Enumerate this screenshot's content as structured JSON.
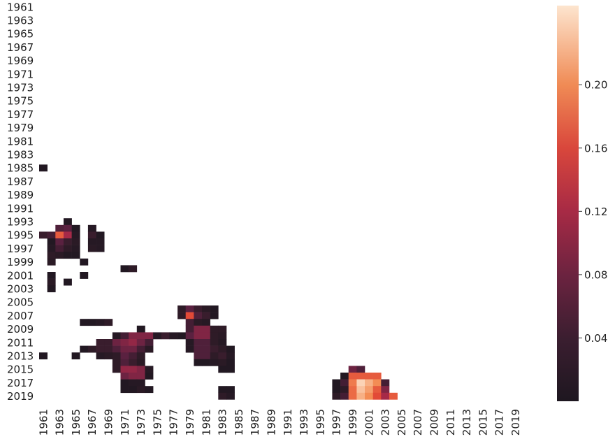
{
  "chart_data": {
    "type": "heatmap",
    "title": "",
    "xlabel": "",
    "ylabel": "",
    "x_tick_labels": [
      "1961",
      "1963",
      "1965",
      "1967",
      "1969",
      "1971",
      "1973",
      "1975",
      "1977",
      "1979",
      "1981",
      "1983",
      "1985",
      "1987",
      "1989",
      "1991",
      "1993",
      "1995",
      "1997",
      "1999",
      "2001",
      "2003",
      "2005",
      "2007",
      "2009",
      "2011",
      "2013",
      "2015",
      "2017",
      "2019"
    ],
    "y_tick_labels": [
      "1961",
      "1963",
      "1965",
      "1967",
      "1969",
      "1971",
      "1973",
      "1975",
      "1977",
      "1979",
      "1981",
      "1983",
      "1985",
      "1987",
      "1989",
      "1991",
      "1993",
      "1995",
      "1997",
      "1999",
      "2001",
      "2003",
      "2005",
      "2007",
      "2009",
      "2011",
      "2013",
      "2015",
      "2017",
      "2019"
    ],
    "x_range": [
      1961,
      2020
    ],
    "y_range": [
      1961,
      2020
    ],
    "colorbar": {
      "min": 0.0,
      "max": 0.25,
      "ticks": [
        0.04,
        0.08,
        0.12,
        0.16,
        0.2
      ],
      "tick_labels": [
        "0.04",
        "0.08",
        "0.12",
        "0.16",
        "0.20"
      ],
      "colormap": "rocket-like (black → purple → red → orange → cream)"
    },
    "cells": [
      {
        "x": 1961,
        "y": 1985,
        "v": 0.01
      },
      {
        "x": 1964,
        "y": 1993,
        "v": 0.01
      },
      {
        "x": 1963,
        "y": 1994,
        "v": 0.07
      },
      {
        "x": 1964,
        "y": 1994,
        "v": 0.08
      },
      {
        "x": 1965,
        "y": 1994,
        "v": 0.01
      },
      {
        "x": 1967,
        "y": 1994,
        "v": 0.02
      },
      {
        "x": 1961,
        "y": 1995,
        "v": 0.05
      },
      {
        "x": 1962,
        "y": 1995,
        "v": 0.06
      },
      {
        "x": 1963,
        "y": 1995,
        "v": 0.17
      },
      {
        "x": 1964,
        "y": 1995,
        "v": 0.12
      },
      {
        "x": 1965,
        "y": 1995,
        "v": 0.02
      },
      {
        "x": 1967,
        "y": 1995,
        "v": 0.05
      },
      {
        "x": 1968,
        "y": 1995,
        "v": 0.01
      },
      {
        "x": 1962,
        "y": 1996,
        "v": 0.01
      },
      {
        "x": 1963,
        "y": 1996,
        "v": 0.08
      },
      {
        "x": 1964,
        "y": 1996,
        "v": 0.05
      },
      {
        "x": 1965,
        "y": 1996,
        "v": 0.03
      },
      {
        "x": 1967,
        "y": 1996,
        "v": 0.02
      },
      {
        "x": 1968,
        "y": 1996,
        "v": 0.02
      },
      {
        "x": 1962,
        "y": 1997,
        "v": 0.02
      },
      {
        "x": 1963,
        "y": 1997,
        "v": 0.06
      },
      {
        "x": 1964,
        "y": 1997,
        "v": 0.04
      },
      {
        "x": 1965,
        "y": 1997,
        "v": 0.02
      },
      {
        "x": 1967,
        "y": 1997,
        "v": 0.03
      },
      {
        "x": 1968,
        "y": 1997,
        "v": 0.02
      },
      {
        "x": 1962,
        "y": 1998,
        "v": 0.04
      },
      {
        "x": 1963,
        "y": 1998,
        "v": 0.03
      },
      {
        "x": 1964,
        "y": 1998,
        "v": 0.01
      },
      {
        "x": 1965,
        "y": 1998,
        "v": 0.01
      },
      {
        "x": 1962,
        "y": 1999,
        "v": 0.03
      },
      {
        "x": 1966,
        "y": 1999,
        "v": 0.01
      },
      {
        "x": 1971,
        "y": 2000,
        "v": 0.01
      },
      {
        "x": 1972,
        "y": 2000,
        "v": 0.04
      },
      {
        "x": 1962,
        "y": 2001,
        "v": 0.01
      },
      {
        "x": 1966,
        "y": 2001,
        "v": 0.01
      },
      {
        "x": 1962,
        "y": 2002,
        "v": 0.03
      },
      {
        "x": 1964,
        "y": 2002,
        "v": 0.01
      },
      {
        "x": 1962,
        "y": 2003,
        "v": 0.01
      },
      {
        "x": 1978,
        "y": 2006,
        "v": 0.04
      },
      {
        "x": 1979,
        "y": 2006,
        "v": 0.08
      },
      {
        "x": 1980,
        "y": 2006,
        "v": 0.05
      },
      {
        "x": 1981,
        "y": 2006,
        "v": 0.03
      },
      {
        "x": 1982,
        "y": 2006,
        "v": 0.01
      },
      {
        "x": 1978,
        "y": 2007,
        "v": 0.04
      },
      {
        "x": 1979,
        "y": 2007,
        "v": 0.16
      },
      {
        "x": 1980,
        "y": 2007,
        "v": 0.07
      },
      {
        "x": 1981,
        "y": 2007,
        "v": 0.05
      },
      {
        "x": 1982,
        "y": 2007,
        "v": 0.01
      },
      {
        "x": 1966,
        "y": 2008,
        "v": 0.01
      },
      {
        "x": 1967,
        "y": 2008,
        "v": 0.01
      },
      {
        "x": 1968,
        "y": 2008,
        "v": 0.02
      },
      {
        "x": 1969,
        "y": 2008,
        "v": 0.04
      },
      {
        "x": 1979,
        "y": 2008,
        "v": 0.06
      },
      {
        "x": 1980,
        "y": 2008,
        "v": 0.03
      },
      {
        "x": 1981,
        "y": 2008,
        "v": 0.02
      },
      {
        "x": 1973,
        "y": 2009,
        "v": 0.01
      },
      {
        "x": 1979,
        "y": 2009,
        "v": 0.06
      },
      {
        "x": 1980,
        "y": 2009,
        "v": 0.1
      },
      {
        "x": 1981,
        "y": 2009,
        "v": 0.1
      },
      {
        "x": 1982,
        "y": 2009,
        "v": 0.04
      },
      {
        "x": 1983,
        "y": 2009,
        "v": 0.04
      },
      {
        "x": 1970,
        "y": 2010,
        "v": 0.02
      },
      {
        "x": 1971,
        "y": 2010,
        "v": 0.06
      },
      {
        "x": 1972,
        "y": 2010,
        "v": 0.1
      },
      {
        "x": 1973,
        "y": 2010,
        "v": 0.1
      },
      {
        "x": 1974,
        "y": 2010,
        "v": 0.1
      },
      {
        "x": 1975,
        "y": 2010,
        "v": 0.02
      },
      {
        "x": 1976,
        "y": 2010,
        "v": 0.05
      },
      {
        "x": 1977,
        "y": 2010,
        "v": 0.02
      },
      {
        "x": 1978,
        "y": 2010,
        "v": 0.01
      },
      {
        "x": 1979,
        "y": 2010,
        "v": 0.08
      },
      {
        "x": 1980,
        "y": 2010,
        "v": 0.1
      },
      {
        "x": 1981,
        "y": 2010,
        "v": 0.1
      },
      {
        "x": 1982,
        "y": 2010,
        "v": 0.04
      },
      {
        "x": 1983,
        "y": 2010,
        "v": 0.03
      },
      {
        "x": 1968,
        "y": 2011,
        "v": 0.05
      },
      {
        "x": 1969,
        "y": 2011,
        "v": 0.05
      },
      {
        "x": 1970,
        "y": 2011,
        "v": 0.09
      },
      {
        "x": 1971,
        "y": 2011,
        "v": 0.1
      },
      {
        "x": 1972,
        "y": 2011,
        "v": 0.11
      },
      {
        "x": 1973,
        "y": 2011,
        "v": 0.09
      },
      {
        "x": 1974,
        "y": 2011,
        "v": 0.06
      },
      {
        "x": 1979,
        "y": 2011,
        "v": 0.02
      },
      {
        "x": 1980,
        "y": 2011,
        "v": 0.07
      },
      {
        "x": 1981,
        "y": 2011,
        "v": 0.07
      },
      {
        "x": 1982,
        "y": 2011,
        "v": 0.04
      },
      {
        "x": 1983,
        "y": 2011,
        "v": 0.02
      },
      {
        "x": 1966,
        "y": 2012,
        "v": 0.01
      },
      {
        "x": 1967,
        "y": 2012,
        "v": 0.04
      },
      {
        "x": 1968,
        "y": 2012,
        "v": 0.05
      },
      {
        "x": 1969,
        "y": 2012,
        "v": 0.05
      },
      {
        "x": 1970,
        "y": 2012,
        "v": 0.07
      },
      {
        "x": 1971,
        "y": 2012,
        "v": 0.09
      },
      {
        "x": 1972,
        "y": 2012,
        "v": 0.09
      },
      {
        "x": 1973,
        "y": 2012,
        "v": 0.06
      },
      {
        "x": 1974,
        "y": 2012,
        "v": 0.03
      },
      {
        "x": 1979,
        "y": 2012,
        "v": 0.02
      },
      {
        "x": 1980,
        "y": 2012,
        "v": 0.07
      },
      {
        "x": 1981,
        "y": 2012,
        "v": 0.07
      },
      {
        "x": 1982,
        "y": 2012,
        "v": 0.05
      },
      {
        "x": 1983,
        "y": 2012,
        "v": 0.04
      },
      {
        "x": 1984,
        "y": 2012,
        "v": 0.01
      },
      {
        "x": 1961,
        "y": 2013,
        "v": 0.01
      },
      {
        "x": 1965,
        "y": 2013,
        "v": 0.01
      },
      {
        "x": 1968,
        "y": 2013,
        "v": 0.02
      },
      {
        "x": 1969,
        "y": 2013,
        "v": 0.03
      },
      {
        "x": 1970,
        "y": 2013,
        "v": 0.04
      },
      {
        "x": 1971,
        "y": 2013,
        "v": 0.08
      },
      {
        "x": 1972,
        "y": 2013,
        "v": 0.06
      },
      {
        "x": 1973,
        "y": 2013,
        "v": 0.04
      },
      {
        "x": 1980,
        "y": 2013,
        "v": 0.07
      },
      {
        "x": 1981,
        "y": 2013,
        "v": 0.07
      },
      {
        "x": 1982,
        "y": 2013,
        "v": 0.04
      },
      {
        "x": 1983,
        "y": 2013,
        "v": 0.05
      },
      {
        "x": 1984,
        "y": 2013,
        "v": 0.02
      },
      {
        "x": 1970,
        "y": 2014,
        "v": 0.04
      },
      {
        "x": 1971,
        "y": 2014,
        "v": 0.07
      },
      {
        "x": 1972,
        "y": 2014,
        "v": 0.05
      },
      {
        "x": 1973,
        "y": 2014,
        "v": 0.03
      },
      {
        "x": 1980,
        "y": 2014,
        "v": 0.01
      },
      {
        "x": 1981,
        "y": 2014,
        "v": 0.01
      },
      {
        "x": 1982,
        "y": 2014,
        "v": 0.02
      },
      {
        "x": 1983,
        "y": 2014,
        "v": 0.03
      },
      {
        "x": 1984,
        "y": 2014,
        "v": 0.01
      },
      {
        "x": 1970,
        "y": 2015,
        "v": 0.04
      },
      {
        "x": 1971,
        "y": 2015,
        "v": 0.11
      },
      {
        "x": 1972,
        "y": 2015,
        "v": 0.11
      },
      {
        "x": 1973,
        "y": 2015,
        "v": 0.1
      },
      {
        "x": 1974,
        "y": 2015,
        "v": 0.02
      },
      {
        "x": 1983,
        "y": 2015,
        "v": 0.01
      },
      {
        "x": 1984,
        "y": 2015,
        "v": 0.01
      },
      {
        "x": 1971,
        "y": 2016,
        "v": 0.09
      },
      {
        "x": 1972,
        "y": 2016,
        "v": 0.1
      },
      {
        "x": 1973,
        "y": 2016,
        "v": 0.1
      },
      {
        "x": 1974,
        "y": 2016,
        "v": 0.01
      },
      {
        "x": 1971,
        "y": 2017,
        "v": 0.01
      },
      {
        "x": 1972,
        "y": 2017,
        "v": 0.02
      },
      {
        "x": 1973,
        "y": 2017,
        "v": 0.02
      },
      {
        "x": 1971,
        "y": 2018,
        "v": 0.01
      },
      {
        "x": 1972,
        "y": 2018,
        "v": 0.01
      },
      {
        "x": 1973,
        "y": 2018,
        "v": 0.03
      },
      {
        "x": 1974,
        "y": 2018,
        "v": 0.01
      },
      {
        "x": 1983,
        "y": 2018,
        "v": 0.01
      },
      {
        "x": 1984,
        "y": 2018,
        "v": 0.01
      },
      {
        "x": 1983,
        "y": 2019,
        "v": 0.04
      },
      {
        "x": 1984,
        "y": 2019,
        "v": 0.02
      },
      {
        "x": 1999,
        "y": 2015,
        "v": 0.09
      },
      {
        "x": 2000,
        "y": 2015,
        "v": 0.07
      },
      {
        "x": 1998,
        "y": 2016,
        "v": 0.01
      },
      {
        "x": 1999,
        "y": 2016,
        "v": 0.17
      },
      {
        "x": 2000,
        "y": 2016,
        "v": 0.17
      },
      {
        "x": 2001,
        "y": 2016,
        "v": 0.17
      },
      {
        "x": 2002,
        "y": 2016,
        "v": 0.17
      },
      {
        "x": 1997,
        "y": 2017,
        "v": 0.01
      },
      {
        "x": 1998,
        "y": 2017,
        "v": 0.06
      },
      {
        "x": 1999,
        "y": 2017,
        "v": 0.19
      },
      {
        "x": 2000,
        "y": 2017,
        "v": 0.24
      },
      {
        "x": 2001,
        "y": 2017,
        "v": 0.22
      },
      {
        "x": 2002,
        "y": 2017,
        "v": 0.2
      },
      {
        "x": 2003,
        "y": 2017,
        "v": 0.06
      },
      {
        "x": 1997,
        "y": 2018,
        "v": 0.01
      },
      {
        "x": 1998,
        "y": 2018,
        "v": 0.04
      },
      {
        "x": 1999,
        "y": 2018,
        "v": 0.18
      },
      {
        "x": 2000,
        "y": 2018,
        "v": 0.23
      },
      {
        "x": 2001,
        "y": 2018,
        "v": 0.21
      },
      {
        "x": 2002,
        "y": 2018,
        "v": 0.17
      },
      {
        "x": 2003,
        "y": 2018,
        "v": 0.1
      },
      {
        "x": 1997,
        "y": 2019,
        "v": 0.04
      },
      {
        "x": 1998,
        "y": 2019,
        "v": 0.06
      },
      {
        "x": 1999,
        "y": 2019,
        "v": 0.18
      },
      {
        "x": 2000,
        "y": 2019,
        "v": 0.22
      },
      {
        "x": 2001,
        "y": 2019,
        "v": 0.2
      },
      {
        "x": 2002,
        "y": 2019,
        "v": 0.16
      },
      {
        "x": 2003,
        "y": 2019,
        "v": 0.12
      },
      {
        "x": 2004,
        "y": 2019,
        "v": 0.17
      }
    ]
  }
}
